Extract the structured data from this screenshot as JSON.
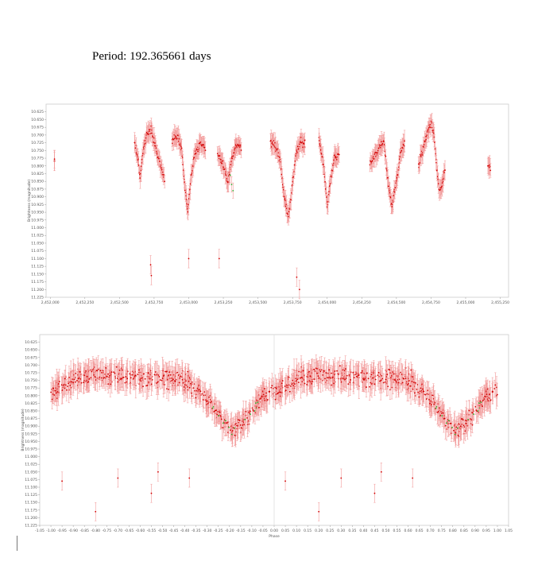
{
  "page": {
    "title": "Period: 192.365661 days"
  },
  "colors": {
    "points": "#d10000",
    "error_bars": "#f29a9a",
    "alt_points": "#2fae2f",
    "axis": "#cccccc"
  },
  "chart_data": [
    {
      "type": "scatter",
      "title": "",
      "xlabel": "",
      "ylabel": "Brightness (magnitude)",
      "xlim": [
        2451970,
        2455310
      ],
      "ylim": [
        11.225,
        10.6
      ],
      "y_reversed": true,
      "grid": false,
      "x_ticks": [
        2452000,
        2452250,
        2452500,
        2452750,
        2453000,
        2453250,
        2453500,
        2453750,
        2454000,
        2454250,
        2454500,
        2454750,
        2455000,
        2455250
      ],
      "x_tick_labels": [
        "2,452,000",
        "2,452,250",
        "2,452,500",
        "2,452,750",
        "2,453,000",
        "2,453,250",
        "2,453,500",
        "2,453,750",
        "2,454,000",
        "2,454,250",
        "2,454,500",
        "2,454,750",
        "2,455,000",
        "2,455,250"
      ],
      "y_ticks": [
        10.625,
        10.65,
        10.675,
        10.7,
        10.725,
        10.75,
        10.775,
        10.8,
        10.825,
        10.85,
        10.875,
        10.9,
        10.925,
        10.95,
        10.975,
        11.0,
        11.025,
        11.05,
        11.075,
        11.1,
        11.125,
        11.15,
        11.175,
        11.2,
        11.225
      ],
      "y_tick_labels": [
        "10.625",
        "10.650",
        "10.675",
        "10.700",
        "10.725",
        "10.750",
        "10.775",
        "10.800",
        "10.825",
        "10.850",
        "10.875",
        "10.900",
        "10.925",
        "10.950",
        "10.975",
        "11.000",
        "11.025",
        "11.050",
        "11.075",
        "11.100",
        "11.125",
        "11.150",
        "11.175",
        "11.200",
        "11.225"
      ],
      "season_keypoints": [
        [
          [
            2452030,
            10.78
          ]
        ],
        [
          [
            2452610,
            10.72
          ],
          [
            2452635,
            10.78
          ],
          [
            2452650,
            10.84
          ],
          [
            2452670,
            10.75
          ],
          [
            2452700,
            10.7
          ],
          [
            2452730,
            10.68
          ],
          [
            2452760,
            10.74
          ],
          [
            2452790,
            10.78
          ],
          [
            2452810,
            10.82
          ],
          [
            2452825,
            10.85
          ]
        ],
        [
          [
            2452880,
            10.72
          ],
          [
            2452920,
            10.7
          ],
          [
            2452950,
            10.75
          ],
          [
            2452975,
            10.88
          ],
          [
            2452995,
            10.95
          ],
          [
            2453015,
            10.84
          ],
          [
            2453045,
            10.76
          ],
          [
            2453080,
            10.73
          ],
          [
            2453120,
            10.74
          ]
        ],
        [
          [
            2453210,
            10.77
          ],
          [
            2453255,
            10.8
          ],
          [
            2453280,
            10.86
          ],
          [
            2453310,
            10.78
          ],
          [
            2453345,
            10.73
          ],
          [
            2453380,
            10.74
          ]
        ],
        [
          [
            2453590,
            10.72
          ],
          [
            2453620,
            10.73
          ],
          [
            2453660,
            10.78
          ],
          [
            2453690,
            10.9
          ],
          [
            2453720,
            10.97
          ],
          [
            2453745,
            10.88
          ],
          [
            2453775,
            10.76
          ],
          [
            2453810,
            10.72
          ],
          [
            2453840,
            10.73
          ]
        ],
        [
          [
            2453940,
            10.71
          ],
          [
            2453975,
            10.8
          ],
          [
            2454000,
            10.93
          ],
          [
            2454020,
            10.86
          ],
          [
            2454050,
            10.78
          ],
          [
            2454085,
            10.76
          ]
        ],
        [
          [
            2454310,
            10.79
          ],
          [
            2454345,
            10.77
          ],
          [
            2454375,
            10.74
          ],
          [
            2454410,
            10.72
          ],
          [
            2454440,
            10.86
          ],
          [
            2454470,
            10.93
          ],
          [
            2454500,
            10.85
          ],
          [
            2454530,
            10.76
          ],
          [
            2454560,
            10.72
          ]
        ],
        [
          [
            2454660,
            10.8
          ],
          [
            2454690,
            10.75
          ],
          [
            2454720,
            10.7
          ],
          [
            2454750,
            10.66
          ],
          [
            2454770,
            10.69
          ],
          [
            2454790,
            10.8
          ],
          [
            2454810,
            10.88
          ],
          [
            2454830,
            10.87
          ],
          [
            2454850,
            10.8
          ]
        ],
        [
          [
            2455160,
            10.79
          ],
          [
            2455180,
            10.81
          ]
        ]
      ],
      "outliers": [
        [
          2452725,
          11.12
        ],
        [
          2452730,
          11.155
        ],
        [
          2453000,
          11.1
        ],
        [
          2453220,
          11.1
        ],
        [
          2453780,
          11.16
        ],
        [
          2453800,
          11.2
        ]
      ],
      "green_points": [
        [
          2453300,
          10.83
        ],
        [
          2453310,
          10.86
        ],
        [
          2453320,
          10.88
        ]
      ]
    },
    {
      "type": "scatter",
      "title": "",
      "xlabel": "Phase",
      "ylabel": "Brightness (magnitude)",
      "xlim": [
        -1.05,
        1.05
      ],
      "ylim": [
        11.225,
        10.6
      ],
      "y_reversed": true,
      "grid": false,
      "x_ticks": [
        -1.05,
        -1.0,
        -0.95,
        -0.9,
        -0.85,
        -0.8,
        -0.75,
        -0.7,
        -0.65,
        -0.6,
        -0.55,
        -0.5,
        -0.45,
        -0.4,
        -0.35,
        -0.3,
        -0.25,
        -0.2,
        -0.15,
        -0.1,
        -0.05,
        0.0,
        0.05,
        0.1,
        0.15,
        0.2,
        0.25,
        0.3,
        0.35,
        0.4,
        0.45,
        0.5,
        0.55,
        0.6,
        0.65,
        0.7,
        0.75,
        0.8,
        0.85,
        0.9,
        0.95,
        1.0,
        1.05
      ],
      "x_tick_labels": [
        "-1.05",
        "-1.00",
        "-0.95",
        "-0.90",
        "-0.85",
        "-0.80",
        "-0.75",
        "-0.70",
        "-0.65",
        "-0.60",
        "-0.55",
        "-0.50",
        "-0.45",
        "-0.40",
        "-0.35",
        "-0.30",
        "-0.25",
        "-0.20",
        "-0.15",
        "-0.10",
        "-0.05",
        "0.00",
        "0.05",
        "0.10",
        "0.15",
        "0.20",
        "0.25",
        "0.30",
        "0.35",
        "0.40",
        "0.45",
        "0.50",
        "0.55",
        "0.60",
        "0.65",
        "0.70",
        "0.75",
        "0.80",
        "0.85",
        "0.90",
        "0.95",
        "1.00",
        "1.05"
      ],
      "y_ticks": [
        10.625,
        10.65,
        10.675,
        10.7,
        10.725,
        10.75,
        10.775,
        10.8,
        10.825,
        10.85,
        10.875,
        10.9,
        10.925,
        10.95,
        10.975,
        11.0,
        11.025,
        11.05,
        11.075,
        11.1,
        11.125,
        11.15,
        11.175,
        11.2,
        11.225
      ],
      "y_tick_labels": [
        "10.625",
        "10.650",
        "10.675",
        "10.700",
        "10.725",
        "10.750",
        "10.775",
        "10.800",
        "10.825",
        "10.850",
        "10.875",
        "10.900",
        "10.925",
        "10.950",
        "10.975",
        "11.000",
        "11.025",
        "11.050",
        "11.075",
        "11.100",
        "11.125",
        "11.150",
        "11.175",
        "11.200",
        "11.225"
      ],
      "phase_curve": [
        [
          0.0,
          10.8
        ],
        [
          0.08,
          10.75
        ],
        [
          0.2,
          10.73
        ],
        [
          0.35,
          10.74
        ],
        [
          0.5,
          10.74
        ],
        [
          0.6,
          10.75
        ],
        [
          0.68,
          10.8
        ],
        [
          0.75,
          10.86
        ],
        [
          0.8,
          10.92
        ],
        [
          0.85,
          10.9
        ],
        [
          0.9,
          10.85
        ],
        [
          0.95,
          10.8
        ],
        [
          1.0,
          10.79
        ]
      ],
      "outliers_phase": [
        [
          0.05,
          11.08
        ],
        [
          0.2,
          11.18
        ],
        [
          0.3,
          11.07
        ],
        [
          0.45,
          11.12
        ],
        [
          0.48,
          11.05
        ],
        [
          0.62,
          11.07
        ]
      ],
      "divider_x": 0.0
    }
  ]
}
